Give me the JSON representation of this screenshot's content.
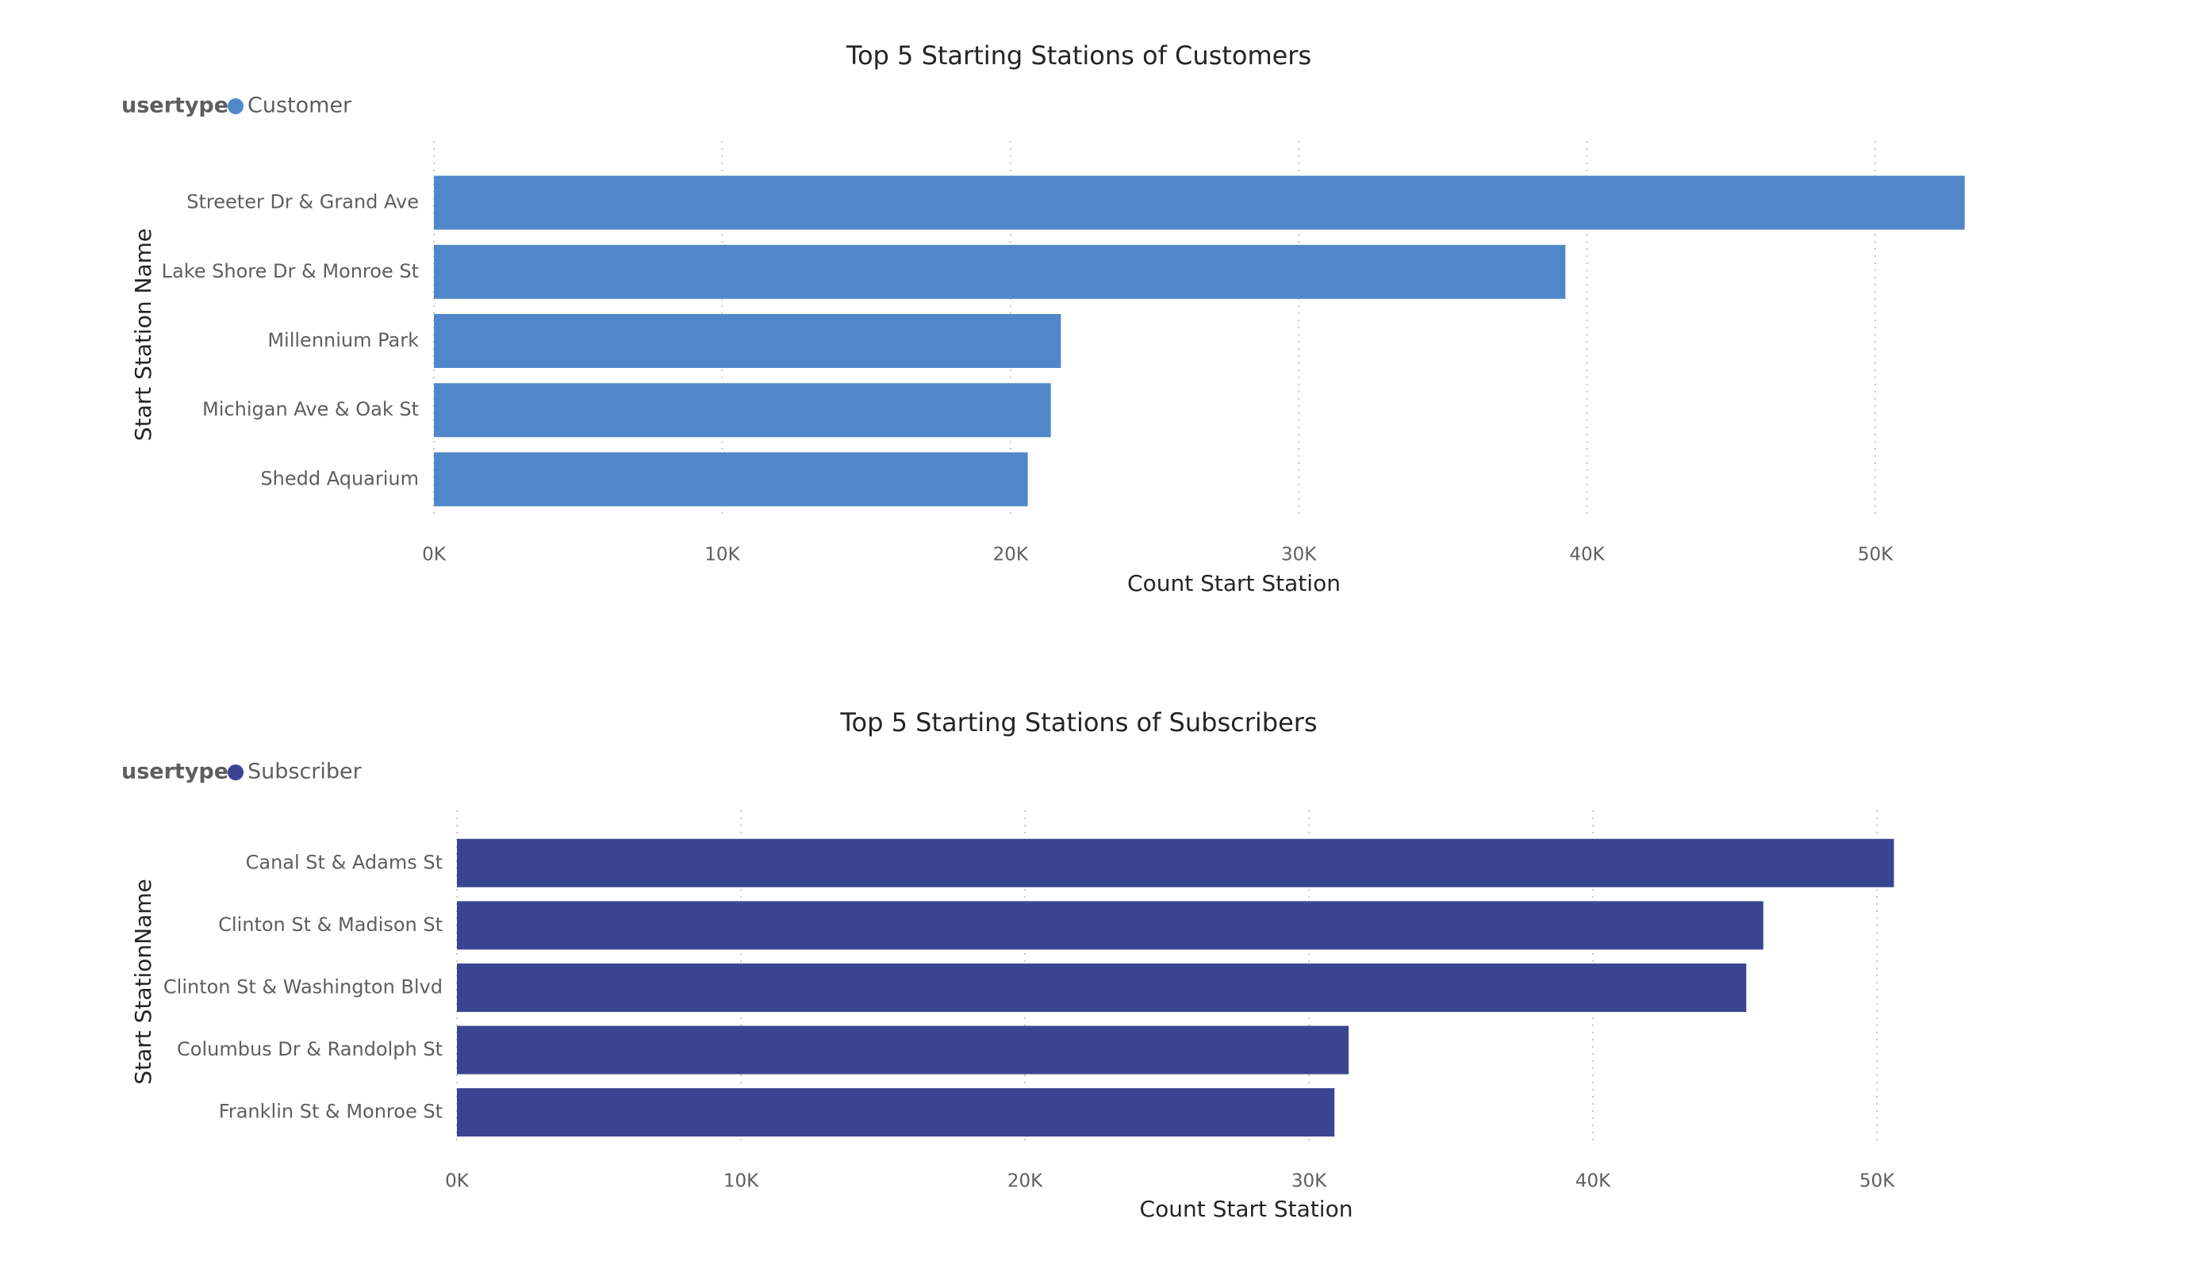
{
  "chart_data": [
    {
      "type": "bar",
      "orientation": "horizontal",
      "title": "Top 5 Starting Stations of Customers",
      "legend": {
        "title": "usertype",
        "entries": [
          {
            "label": "Customer",
            "color": "#5087C8"
          }
        ],
        "position": "top-left"
      },
      "ylabel": "Start Station Name",
      "xlabel": "Count Start Station",
      "xlim": [
        0,
        55000
      ],
      "xticks": [
        0,
        10000,
        20000,
        30000,
        40000,
        50000
      ],
      "xtick_labels": [
        "0K",
        "10K",
        "20K",
        "30K",
        "40K",
        "50K"
      ],
      "grid": "vertical-dotted",
      "categories": [
        "Streeter Dr & Grand Ave",
        "Lake Shore Dr & Monroe St",
        "Millennium Park",
        "Michigan Ave & Oak St",
        "Shedd Aquarium"
      ],
      "series": [
        {
          "name": "Customer",
          "color": "#5087C8",
          "values": [
            53100,
            39250,
            21750,
            21400,
            20600
          ]
        }
      ]
    },
    {
      "type": "bar",
      "orientation": "horizontal",
      "title": "Top 5 Starting Stations of Subscribers",
      "legend": {
        "title": "usertype",
        "entries": [
          {
            "label": "Subscriber",
            "color": "#3A4592"
          }
        ],
        "position": "top-left"
      },
      "ylabel": "Start StationName",
      "xlabel": "Count Start Station",
      "xlim": [
        0,
        53000
      ],
      "xticks": [
        0,
        10000,
        20000,
        30000,
        40000,
        50000
      ],
      "xtick_labels": [
        "0K",
        "10K",
        "20K",
        "30K",
        "40K",
        "50K"
      ],
      "grid": "vertical-dotted",
      "categories": [
        "Canal St & Adams St",
        "Clinton St & Madison St",
        "Clinton St & Washington Blvd",
        "Columbus Dr & Randolph St",
        "Franklin St & Monroe St"
      ],
      "series": [
        {
          "name": "Subscriber",
          "color": "#3A4592",
          "values": [
            50600,
            46000,
            45400,
            31400,
            30900
          ]
        }
      ]
    }
  ]
}
